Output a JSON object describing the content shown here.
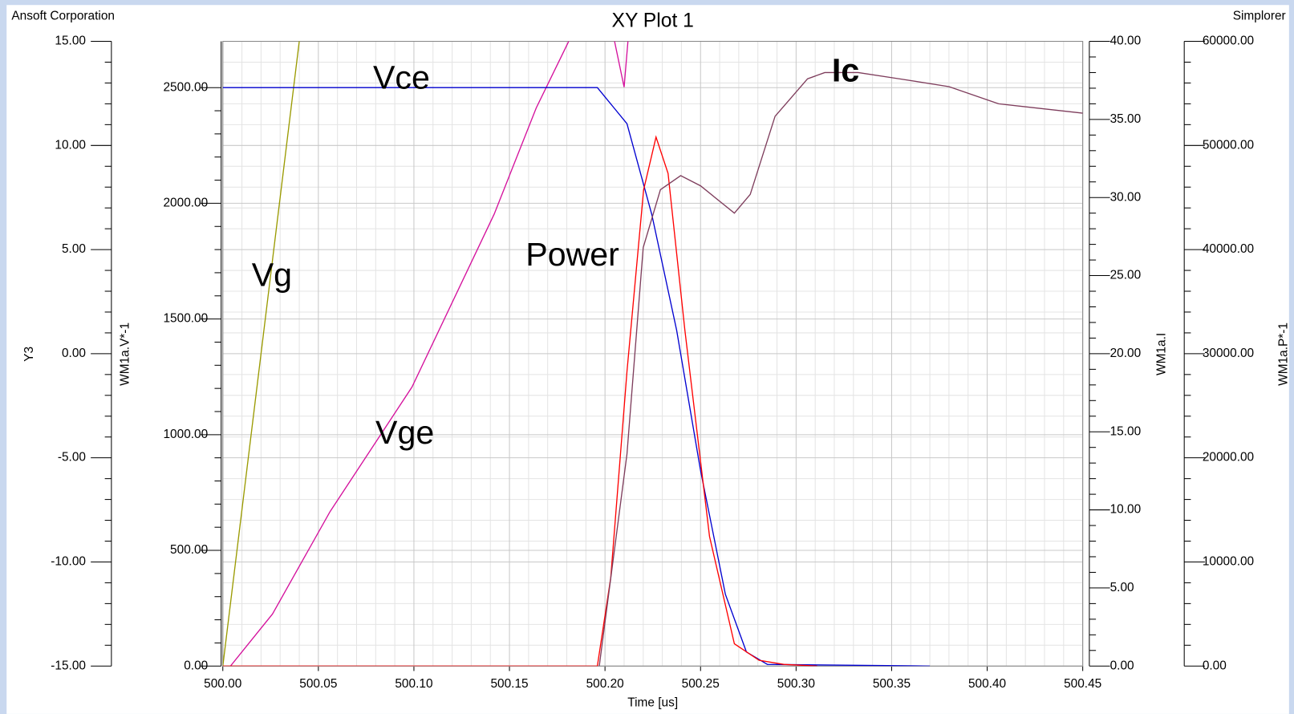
{
  "chart_data": {
    "type": "line",
    "title": "XY Plot 1",
    "header_left": "Ansoft Corporation",
    "header_right": "Simplorer",
    "xlabel": "Time  [us]",
    "ylabel": "Y3",
    "y2label": "WM1a.V*-1",
    "y3label": "WM1a.I",
    "y4label": "WM1a.P*-1",
    "grid": true,
    "xlim": [
      500.0,
      500.45
    ],
    "xticks": [
      {
        "value": 500.0,
        "label": "500.00"
      },
      {
        "value": 500.05,
        "label": "500.05"
      },
      {
        "value": 500.1,
        "label": "500.10"
      },
      {
        "value": 500.15,
        "label": "500.15"
      },
      {
        "value": 500.2,
        "label": "500.20"
      },
      {
        "value": 500.25,
        "label": "500.25"
      },
      {
        "value": 500.3,
        "label": "500.30"
      },
      {
        "value": 500.35,
        "label": "500.35"
      },
      {
        "value": 500.4,
        "label": "500.40"
      },
      {
        "value": 500.45,
        "label": "500.45"
      }
    ],
    "ylim": [
      -15,
      15
    ],
    "yticks": [
      {
        "value": -15,
        "label": "-15.00"
      },
      {
        "value": -10,
        "label": "-10.00"
      },
      {
        "value": -5,
        "label": "-5.00"
      },
      {
        "value": 0,
        "label": "0.00"
      },
      {
        "value": 5,
        "label": "5.00"
      },
      {
        "value": 10,
        "label": "10.00"
      },
      {
        "value": 15,
        "label": "15.00"
      }
    ],
    "y2lim": [
      0,
      2700
    ],
    "y2ticks": [
      {
        "value": 0,
        "label": "0.00"
      },
      {
        "value": 500,
        "label": "500.00"
      },
      {
        "value": 1000,
        "label": "1000.00"
      },
      {
        "value": 1500,
        "label": "1500.00"
      },
      {
        "value": 2000,
        "label": "2000.00"
      },
      {
        "value": 2500,
        "label": "2500.00"
      }
    ],
    "y3lim": [
      0,
      40
    ],
    "y3ticks": [
      {
        "value": 0,
        "label": "0.00"
      },
      {
        "value": 5,
        "label": "5.00"
      },
      {
        "value": 10,
        "label": "10.00"
      },
      {
        "value": 15,
        "label": "15.00"
      },
      {
        "value": 20,
        "label": "20.00"
      },
      {
        "value": 25,
        "label": "25.00"
      },
      {
        "value": 30,
        "label": "30.00"
      },
      {
        "value": 35,
        "label": "35.00"
      },
      {
        "value": 40,
        "label": "40.00"
      }
    ],
    "y4lim": [
      0,
      60000
    ],
    "y4ticks": [
      {
        "value": 0,
        "label": "0.00"
      },
      {
        "value": 10000,
        "label": "10000.00"
      },
      {
        "value": 20000,
        "label": "20000.00"
      },
      {
        "value": 30000,
        "label": "30000.00"
      },
      {
        "value": 40000,
        "label": "40000.00"
      },
      {
        "value": 50000,
        "label": "50000.00"
      },
      {
        "value": 60000,
        "label": "60000.00"
      }
    ],
    "series": [
      {
        "name": "Vg",
        "color": "#9a9a00",
        "axis": "y",
        "x": [
          500.0,
          500.04
        ],
        "values": [
          -15,
          15
        ]
      },
      {
        "name": "Vge",
        "color": "#d4109c",
        "axis": "y",
        "x": [
          500.004,
          500.026,
          500.056,
          500.099,
          500.142,
          500.164,
          500.181,
          500.195,
          500.205,
          500.21,
          500.212
        ],
        "values": [
          -15,
          -12.5,
          -7.6,
          -1.6,
          6.7,
          11.8,
          15,
          null,
          15,
          12.8,
          15
        ]
      },
      {
        "name": "Vce",
        "color": "#0000d0",
        "axis": "y2",
        "x": [
          500.0,
          500.196,
          500.2115,
          500.2245,
          500.2375,
          500.25,
          500.263,
          500.274,
          500.285,
          500.37
        ],
        "values": [
          2500,
          2500,
          2344,
          1951,
          1451,
          845,
          310,
          61,
          7,
          0
        ]
      },
      {
        "name": "Power",
        "color": "#ff0000",
        "axis": "y4",
        "x": [
          500.0,
          500.196,
          500.203,
          500.2115,
          500.2202,
          500.2267,
          500.233,
          500.2418,
          500.2547,
          500.2677,
          500.2806,
          500.2936,
          500.311
        ],
        "values": [
          0,
          0,
          8481,
          28296,
          45733,
          50806,
          47319,
          32259,
          12444,
          2140,
          555,
          159,
          0
        ]
      },
      {
        "name": "Ic",
        "color": "#7e3d5c",
        "axis": "y3",
        "x": [
          500.197,
          500.2115,
          500.22,
          500.229,
          500.2396,
          500.25,
          500.2677,
          500.276,
          500.289,
          500.306,
          500.315,
          500.3325,
          500.354,
          500.38,
          500.406,
          500.45
        ],
        "values": [
          0,
          13.58,
          26.8,
          30.5,
          31.4,
          30.75,
          29.0,
          30.2,
          35.2,
          37.6,
          38.0,
          38.0,
          37.6,
          37.1,
          36.0,
          35.4
        ]
      }
    ],
    "annotations": [
      "Vg",
      "Vce",
      "Vge",
      "Power",
      "Ic"
    ]
  }
}
